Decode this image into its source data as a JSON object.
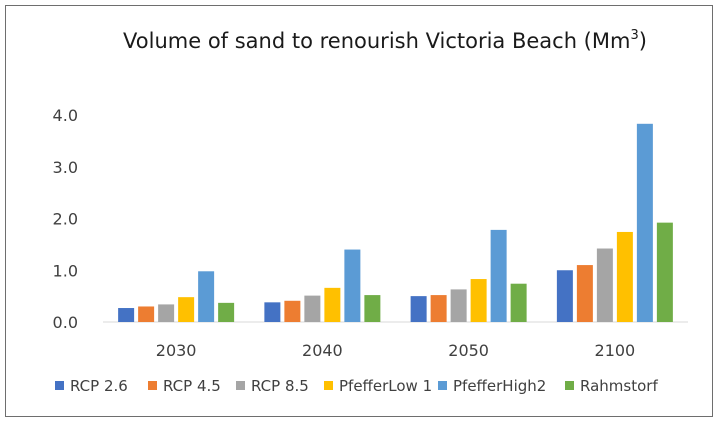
{
  "chart_data": {
    "type": "bar",
    "title": "Volume of sand to renourish Victoria Beach (Mm",
    "title_superscript": "3",
    "title_suffix": ")",
    "xlabel": "",
    "ylabel": "",
    "categories": [
      "2030",
      "2040",
      "2050",
      "2100"
    ],
    "ylim": [
      0,
      4.0
    ],
    "yticks": [
      "0.0",
      "1.0",
      "2.0",
      "3.0",
      "4.0"
    ],
    "grid": false,
    "legend_position": "bottom",
    "series": [
      {
        "name": "RCP 2.6",
        "color": "#4472C4",
        "values": [
          0.27,
          0.38,
          0.5,
          1.0
        ]
      },
      {
        "name": "RCP 4.5",
        "color": "#ED7D31",
        "values": [
          0.3,
          0.41,
          0.52,
          1.1
        ]
      },
      {
        "name": "RCP 8.5",
        "color": "#A5A5A5",
        "values": [
          0.34,
          0.51,
          0.63,
          1.42
        ]
      },
      {
        "name": "PfefferLow 1",
        "color": "#FFC000",
        "values": [
          0.48,
          0.66,
          0.83,
          1.74
        ]
      },
      {
        "name": "PfefferHigh2",
        "color": "#5B9BD5",
        "values": [
          0.98,
          1.4,
          1.78,
          3.83
        ]
      },
      {
        "name": "Rahmstorf",
        "color": "#70AD47",
        "values": [
          0.37,
          0.52,
          0.74,
          1.92
        ]
      }
    ]
  }
}
